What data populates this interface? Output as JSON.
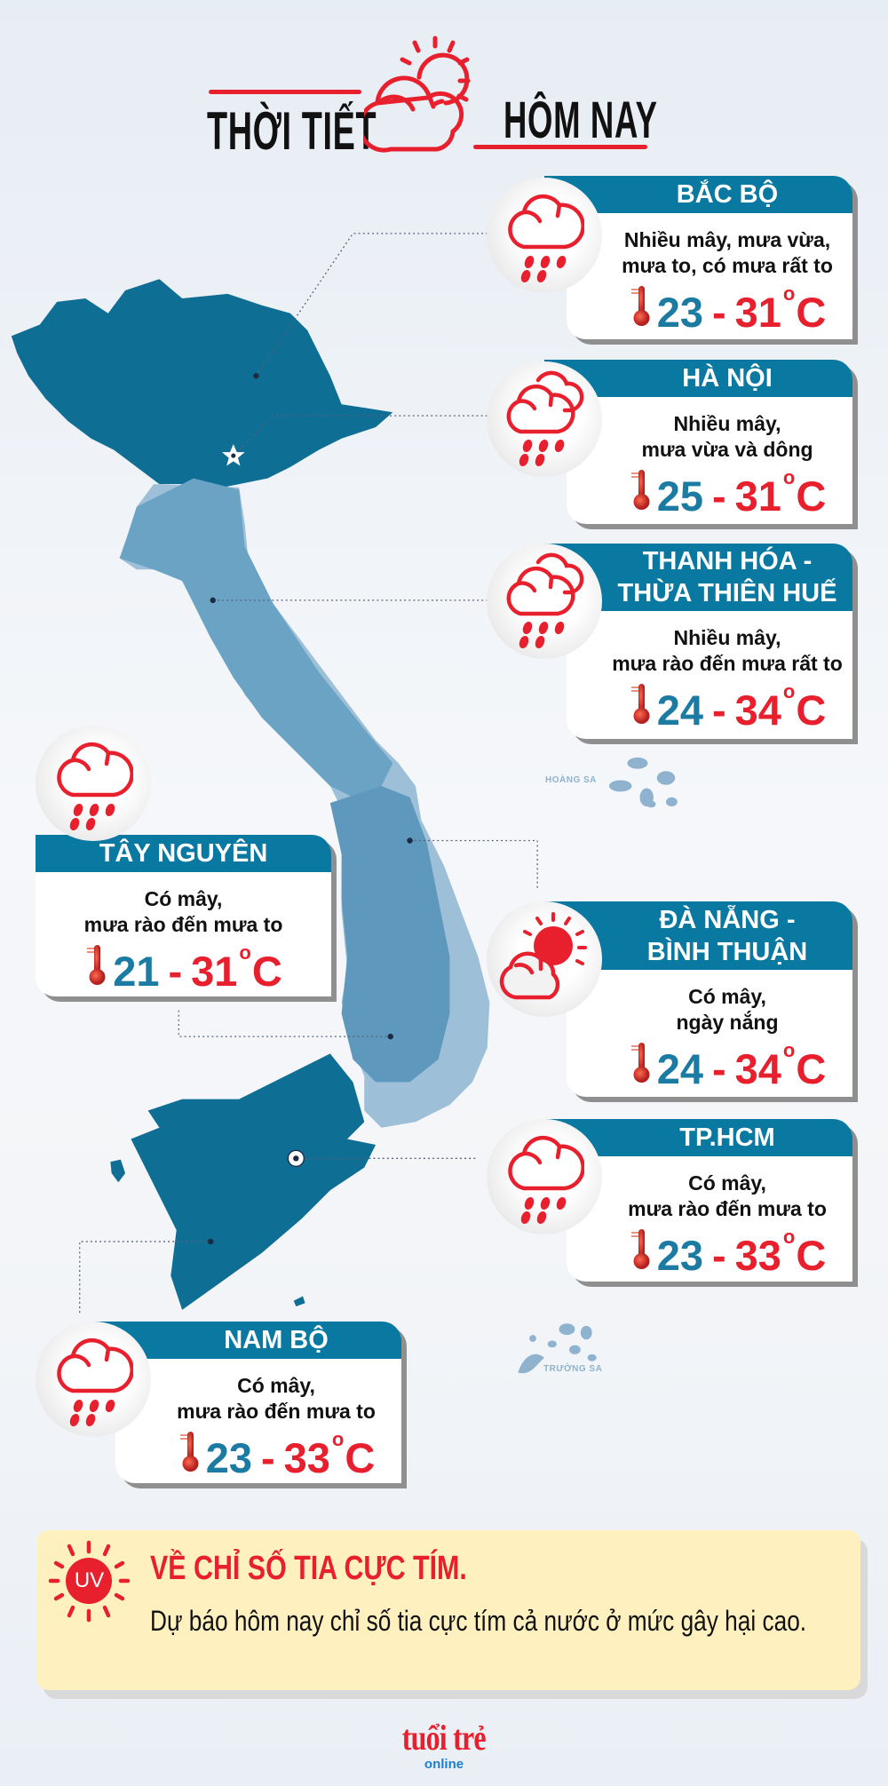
{
  "header": {
    "title_left": "THỜI TIẾT",
    "title_right": "HÔM NAY",
    "icon": "cloud-sun-icon"
  },
  "colors": {
    "accent_red": "#e8202e",
    "header_blue": "#0a79a2",
    "low_temp_blue": "#1b7ba2",
    "map_dark": "#0f6e94",
    "map_mid": "#6aa3c4",
    "map_light": "#9dbfd8"
  },
  "map": {
    "hoang_sa_label": "HOÀNG SA",
    "truong_sa_label": "TRƯỜNG SA"
  },
  "regions": [
    {
      "name_lines": [
        "BẮC BỘ"
      ],
      "desc_lines": [
        "Nhiều mây, mưa vừa,",
        "mưa to, có mưa rất to"
      ],
      "low": "23",
      "high": "31",
      "unit": "C",
      "icon": "rain-cloud-icon"
    },
    {
      "name_lines": [
        "HÀ NỘI"
      ],
      "desc_lines": [
        "Nhiều mây,",
        "mưa vừa và dông"
      ],
      "low": "25",
      "high": "31",
      "unit": "C",
      "icon": "rain-double-cloud-icon"
    },
    {
      "name_lines": [
        "THANH HÓA -",
        "THỪA THIÊN HUẾ"
      ],
      "desc_lines": [
        "Nhiều mây,",
        "mưa rào đến mưa rất to"
      ],
      "low": "24",
      "high": "34",
      "unit": "C",
      "icon": "rain-double-cloud-icon"
    },
    {
      "name_lines": [
        "ĐÀ NẴNG -",
        "BÌNH THUẬN"
      ],
      "desc_lines": [
        "Có mây,",
        "ngày nắng"
      ],
      "low": "24",
      "high": "34",
      "unit": "C",
      "icon": "cloud-sun-icon"
    },
    {
      "name_lines": [
        "TP.HCM"
      ],
      "desc_lines": [
        "Có mây,",
        "mưa rào đến mưa to"
      ],
      "low": "23",
      "high": "33",
      "unit": "C",
      "icon": "rain-cloud-icon"
    },
    {
      "name_lines": [
        "TÂY NGUYÊN"
      ],
      "desc_lines": [
        "Có mây,",
        "mưa rào đến mưa to"
      ],
      "low": "21",
      "high": "31",
      "unit": "C",
      "icon": "rain-cloud-icon"
    },
    {
      "name_lines": [
        "NAM BỘ"
      ],
      "desc_lines": [
        "Có mây,",
        "mưa rào đến mưa to"
      ],
      "low": "23",
      "high": "33",
      "unit": "C",
      "icon": "rain-cloud-icon"
    }
  ],
  "uv": {
    "badge": "UV",
    "title": "VỀ CHỈ SỐ TIA CỰC TÍM.",
    "text": "Dự báo hôm nay chỉ số tia cực tím cả nước ở mức gây hại cao."
  },
  "footer": {
    "logo_main": "tuổi trẻ",
    "logo_sub": "online"
  }
}
